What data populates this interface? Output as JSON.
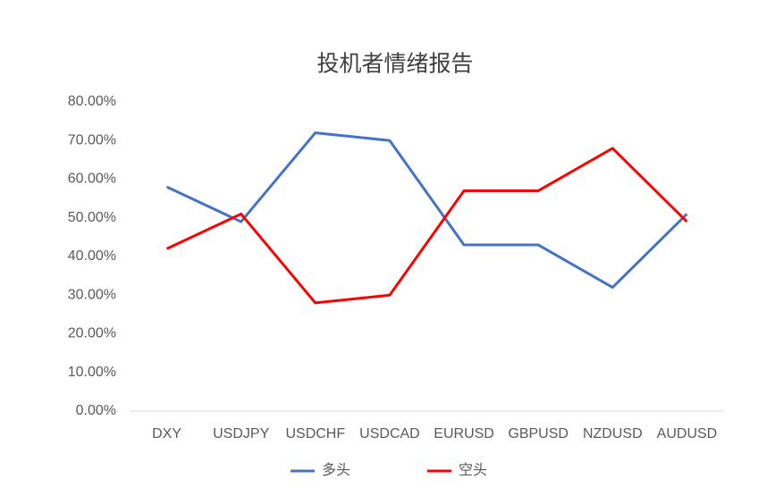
{
  "chart_data": {
    "type": "line",
    "title": "投机者情绪报告",
    "categories": [
      "DXY",
      "USDJPY",
      "USDCHF",
      "USDCAD",
      "EURUSD",
      "GBPUSD",
      "NZDUSD",
      "AUDUSD"
    ],
    "series": [
      {
        "name": "多头",
        "color": "#4472c4",
        "values": [
          58,
          49,
          72,
          70,
          43,
          43,
          32,
          51
        ]
      },
      {
        "name": "空头",
        "color": "#ff0000",
        "values": [
          42,
          51,
          28,
          30,
          57,
          57,
          68,
          49
        ]
      }
    ],
    "ylim": [
      0,
      80
    ],
    "yticks": [
      {
        "value": 0,
        "label": "0.00%"
      },
      {
        "value": 10,
        "label": "10.00%"
      },
      {
        "value": 20,
        "label": "20.00%"
      },
      {
        "value": 30,
        "label": "30.00%"
      },
      {
        "value": 40,
        "label": "40.00%"
      },
      {
        "value": 50,
        "label": "50.00%"
      },
      {
        "value": 60,
        "label": "60.00%"
      },
      {
        "value": 70,
        "label": "70.00%"
      },
      {
        "value": 80,
        "label": "80.00%"
      }
    ],
    "grid": false,
    "legend": "bottom"
  }
}
